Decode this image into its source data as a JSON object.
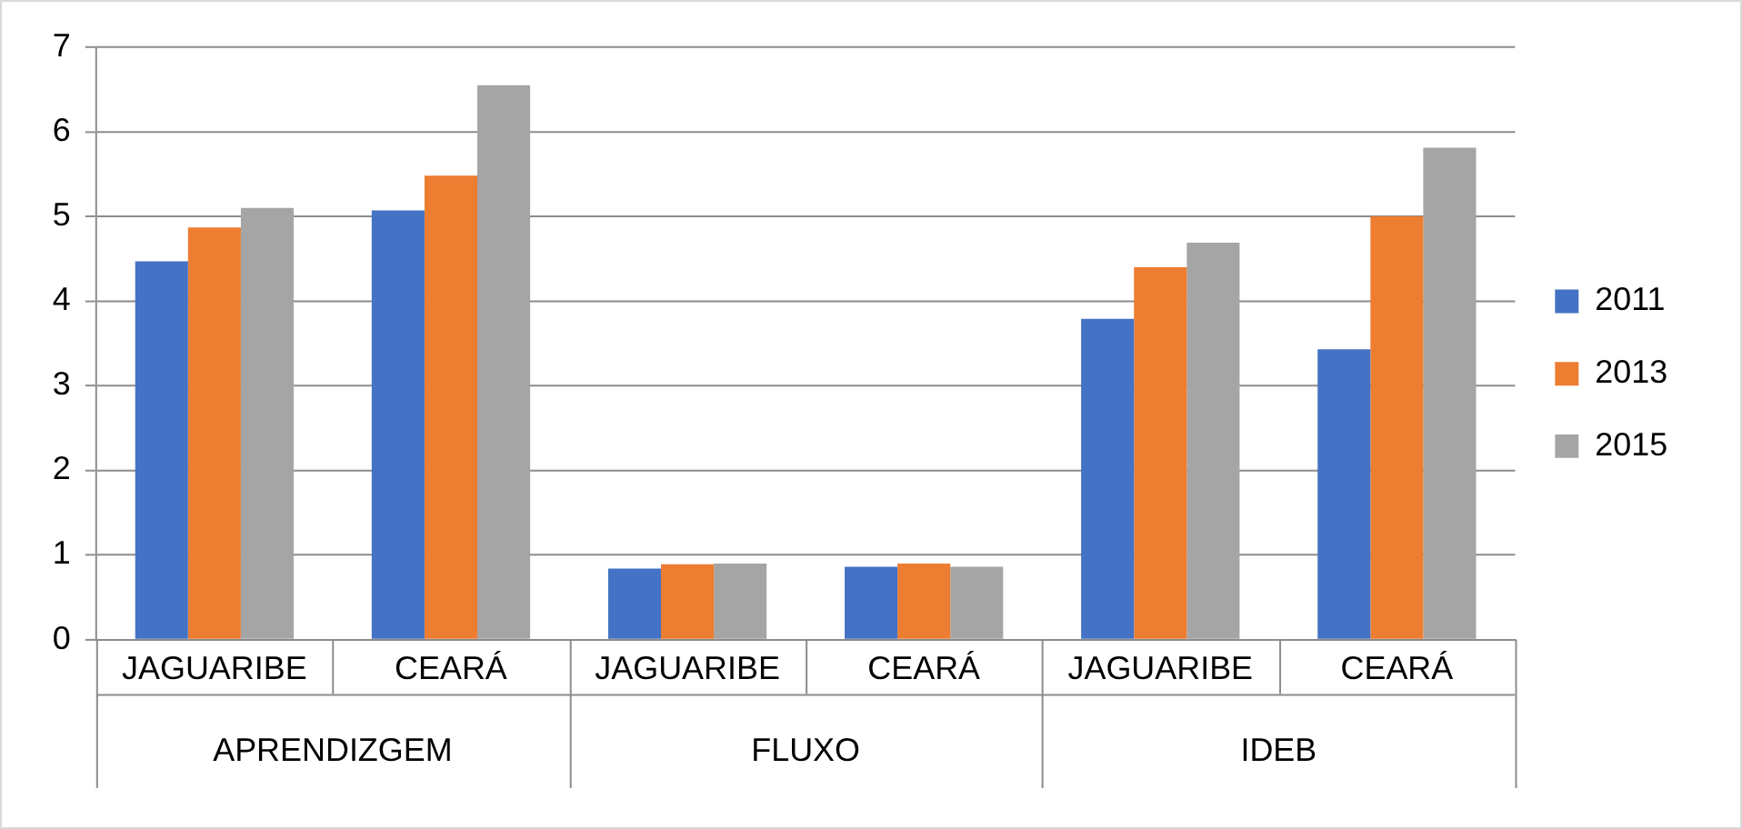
{
  "chart_data": {
    "type": "bar",
    "categories": [
      "JAGUARIBE",
      "CEARÁ",
      "JAGUARIBE",
      "CEARÁ",
      "JAGUARIBE",
      "CEARÁ"
    ],
    "annotations": [
      "APRENDIZGEM",
      "FLUXO",
      "IDEB"
    ],
    "series": [
      {
        "name": "2011",
        "color": "#4472c4",
        "values": [
          4.47,
          5.07,
          0.84,
          0.86,
          3.79,
          3.43
        ]
      },
      {
        "name": "2013",
        "color": "#ed7d31",
        "values": [
          4.87,
          5.48,
          0.89,
          0.9,
          4.4,
          5.0
        ]
      },
      {
        "name": "2015",
        "color": "#a5a5a5",
        "values": [
          5.1,
          6.55,
          0.9,
          0.86,
          4.69,
          5.81
        ]
      }
    ],
    "ylim": [
      0,
      7
    ],
    "yticks": [
      0,
      1,
      2,
      3,
      4,
      5,
      6,
      7
    ],
    "grid": "y",
    "legend": "right"
  }
}
